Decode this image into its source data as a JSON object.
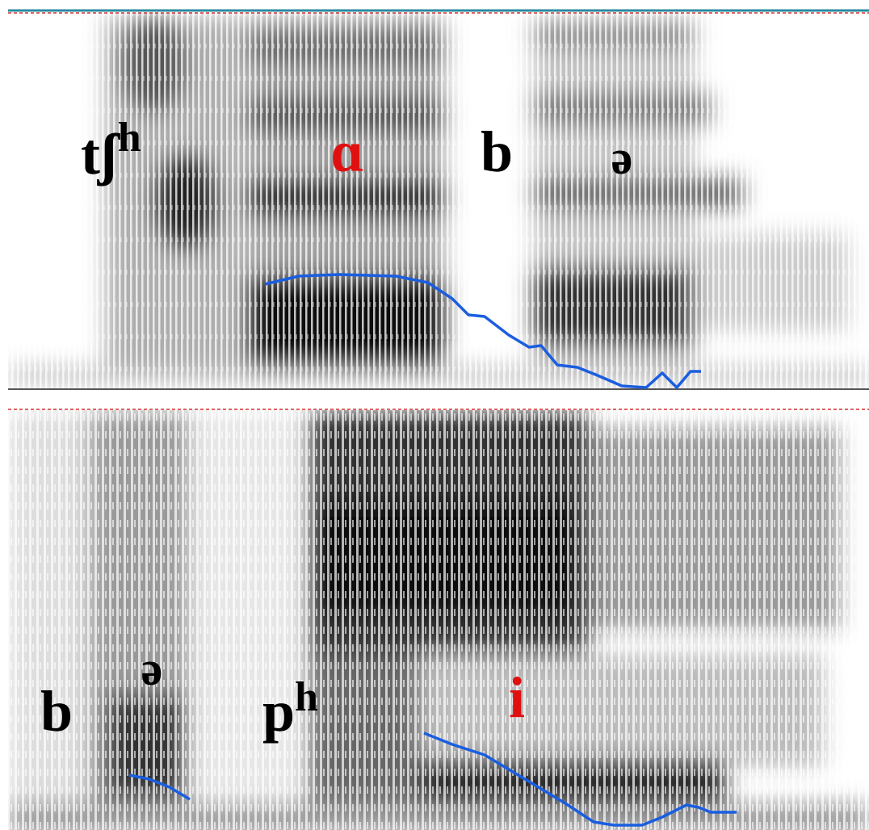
{
  "top_panel": {
    "labels": [
      {
        "text": "tʃ",
        "superscript": "h"
      },
      {
        "text": "ɑ"
      },
      {
        "text": "b"
      },
      {
        "text": "ə"
      }
    ]
  },
  "bottom_panel": {
    "labels": [
      {
        "text": "b"
      },
      {
        "text": "ə"
      },
      {
        "text": "p",
        "superscript": "h"
      },
      {
        "text": "i"
      }
    ]
  }
}
